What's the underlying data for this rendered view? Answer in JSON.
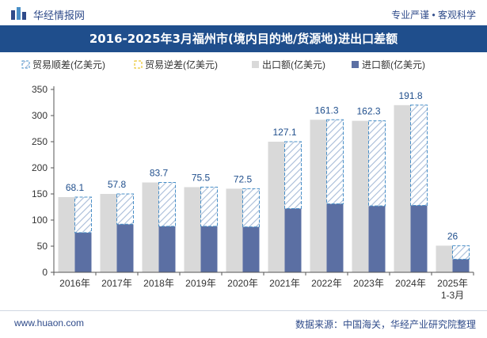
{
  "header": {
    "brand": "华经情报网",
    "tagline": "专业严谨 • 客观科学"
  },
  "footer": {
    "website": "www.huaon.com",
    "source": "数据来源：中国海关，华经产业研究院整理"
  },
  "colors": {
    "title_bg": "#1f4e8c",
    "export": "#d9d9d9",
    "import": "#5b6fa3",
    "surplus_stroke": "#4a90c8",
    "surplus_hatch": "#a8bcd8",
    "deficit_stroke": "#e6b800"
  },
  "chart_data": {
    "type": "bar",
    "title": "2016-2025年3月福州市(境内目的地/货源地)进出口差额",
    "categories": [
      "2016年",
      "2017年",
      "2018年",
      "2019年",
      "2020年",
      "2021年",
      "2022年",
      "2023年",
      "2024年",
      "2025年\n1-3月"
    ],
    "series": [
      {
        "name": "贸易顺差(亿美元)",
        "values": [
          68.1,
          57.8,
          83.7,
          75.5,
          72.5,
          127.1,
          161.3,
          162.3,
          191.8,
          26
        ]
      },
      {
        "name": "贸易逆差(亿美元)",
        "values": [
          0,
          0,
          0,
          0,
          0,
          0,
          0,
          0,
          0,
          0
        ]
      },
      {
        "name": "出口额(亿美元)",
        "values": [
          144,
          150,
          172,
          163,
          160,
          250,
          292,
          290,
          320,
          51
        ]
      },
      {
        "name": "进口额(亿美元)",
        "values": [
          76,
          92,
          88,
          88,
          87,
          122,
          131,
          127,
          128,
          25
        ]
      }
    ],
    "data_labels": [
      "68.1",
      "57.8",
      "83.7",
      "75.5",
      "72.5",
      "127.1",
      "161.3",
      "162.3",
      "191.8",
      "26"
    ],
    "ylim": [
      0,
      350
    ],
    "yticks": [
      "0",
      "50",
      "100",
      "150",
      "200",
      "250",
      "300",
      "350"
    ],
    "legend_position": "top",
    "grid": false
  }
}
